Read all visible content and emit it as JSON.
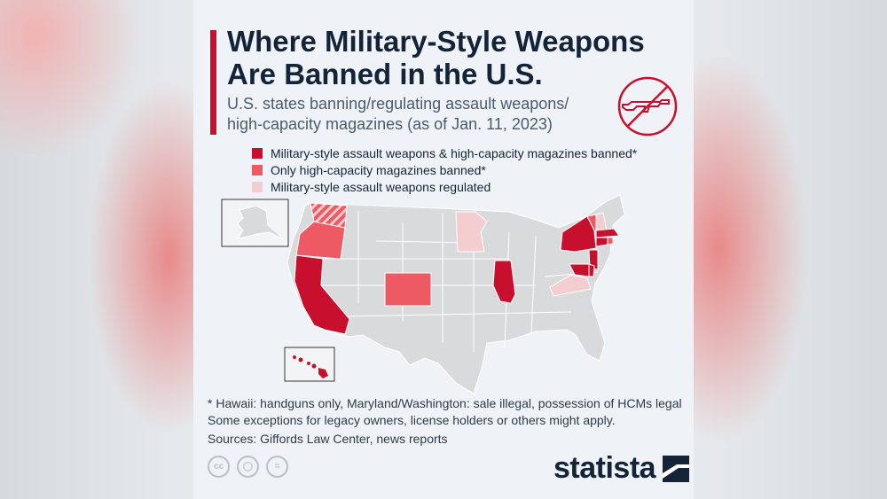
{
  "title": "Where Military-Style Weapons Are Banned in the U.S.",
  "subtitle": "U.S. states banning/regulating assault weapons/ high-capacity magazines (as of Jan. 11, 2023)",
  "colors": {
    "accent": "#c8102e",
    "banned_both": "#c8102e",
    "magazines_only": "#ee5a63",
    "regulated": "#f4cdd0",
    "no_ban": "#d9dadc",
    "text_dark": "#132338"
  },
  "legend": [
    {
      "label": "Military-style assault weapons & high-capacity magazines banned*",
      "category": "banned_both"
    },
    {
      "label": "Only high-capacity magazines banned*",
      "category": "magazines_only"
    },
    {
      "label": "Military-style assault weapons regulated",
      "category": "regulated"
    }
  ],
  "states": {
    "banned_both": [
      "California",
      "Illinois",
      "New York",
      "Massachusetts",
      "Connecticut",
      "New Jersey",
      "Delaware",
      "Maryland",
      "Hawaii"
    ],
    "magazines_only": [
      "Oregon",
      "Colorado",
      "Vermont",
      "Rhode Island",
      "Washington"
    ],
    "regulated": [
      "Minnesota",
      "Virginia",
      "New Hampshire"
    ]
  },
  "notes": [
    "* Hawaii: handguns only, Maryland/Washington: sale illegal, possession of HCMs legal",
    "Some exceptions for legacy owners, license holders or others might apply."
  ],
  "source": "Sources: Giffords Law Center, news reports",
  "license_icons": [
    "cc-icon",
    "attribution-icon",
    "no-derivatives-icon"
  ],
  "brand": "statista",
  "icons": {
    "title_logo": "no-rifle-icon"
  }
}
